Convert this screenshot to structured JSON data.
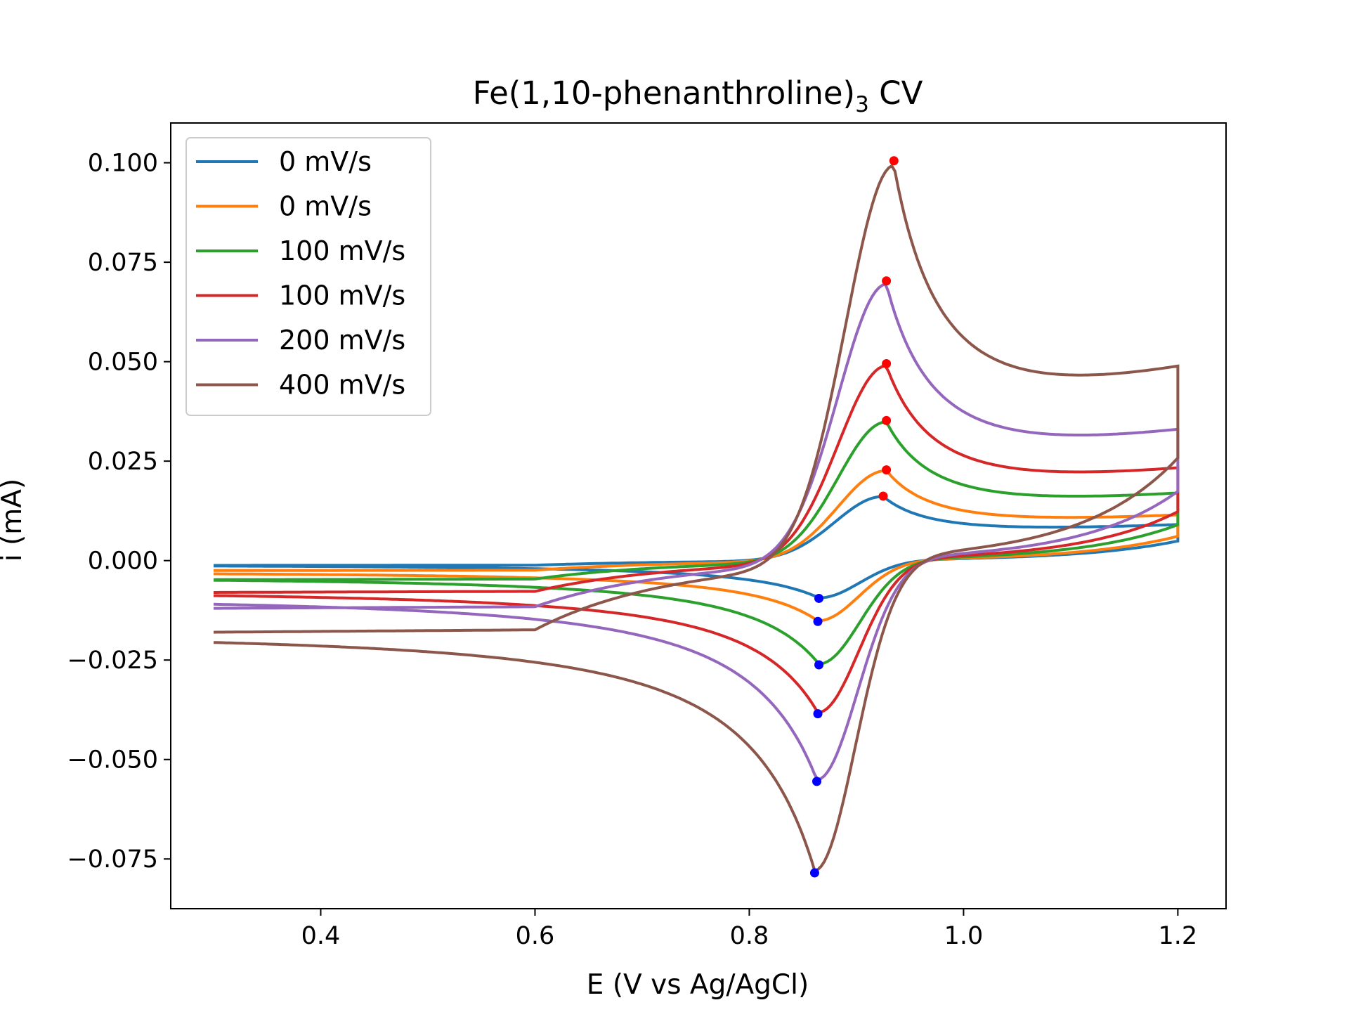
{
  "chart_data": {
    "type": "line",
    "title": "Fe(1,10-phenanthroline)",
    "title_subscript": "3",
    "title_suffix": " CV",
    "xlabel": "E (V vs Ag/AgCl)",
    "ylabel": "i (mA)",
    "xlim": [
      0.26,
      1.245
    ],
    "ylim": [
      -0.0875,
      0.11
    ],
    "xticks": [
      0.4,
      0.6,
      0.8,
      1.0,
      1.2
    ],
    "xtick_labels": [
      "0.4",
      "0.6",
      "0.8",
      "1.0",
      "1.2"
    ],
    "yticks": [
      0.1,
      0.075,
      0.05,
      0.025,
      0.0,
      -0.025,
      -0.05,
      -0.075
    ],
    "ytick_labels": [
      "0.100",
      "0.075",
      "0.050",
      "0.025",
      "0.000",
      "−0.025",
      "−0.050",
      "−0.075"
    ],
    "grid": false,
    "legend_position": "top-left",
    "E_start": 0.3,
    "E_switch": 1.2,
    "series": [
      {
        "name": "0 mV/s",
        "color": "#1f77b4",
        "Epa": 0.925,
        "ipa": 0.0162,
        "Epc": 0.865,
        "ipc": -0.0095,
        "i_start": -0.0012,
        "i_switch": 0.0082,
        "i_end": -0.001
      },
      {
        "name": "0 mV/s",
        "color": "#ff7f0e",
        "Epa": 0.928,
        "ipa": 0.0228,
        "Epc": 0.864,
        "ipc": -0.0153,
        "i_start": -0.0025,
        "i_switch": 0.0102,
        "i_end": -0.0028
      },
      {
        "name": "100 mV/s",
        "color": "#2ca02c",
        "Epa": 0.928,
        "ipa": 0.0352,
        "Epc": 0.865,
        "ipc": -0.0262,
        "i_start": -0.0048,
        "i_switch": 0.015,
        "i_end": -0.004
      },
      {
        "name": "100 mV/s",
        "color": "#d62728",
        "Epa": 0.928,
        "ipa": 0.0495,
        "Epc": 0.864,
        "ipc": -0.0385,
        "i_start": -0.008,
        "i_switch": 0.0205,
        "i_end": -0.0075
      },
      {
        "name": "200 mV/s",
        "color": "#9467bd",
        "Epa": 0.928,
        "ipa": 0.0703,
        "Epc": 0.863,
        "ipc": -0.0555,
        "i_start": -0.012,
        "i_switch": 0.029,
        "i_end": -0.009
      },
      {
        "name": "400 mV/s",
        "color": "#8c564b",
        "Epa": 0.935,
        "ipa": 0.1005,
        "Epc": 0.861,
        "ipc": -0.0785,
        "i_start": -0.018,
        "i_switch": 0.043,
        "i_end": -0.018
      }
    ],
    "peak_markers": {
      "anodic_color": "#ff0000",
      "cathodic_color": "#0000ff"
    }
  }
}
